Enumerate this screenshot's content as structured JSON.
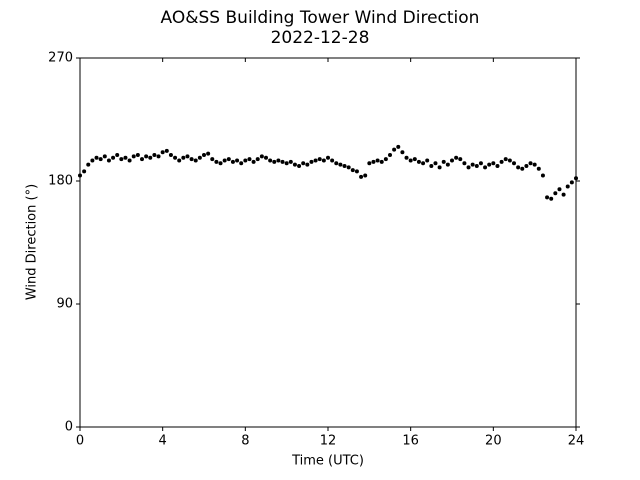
{
  "chart_data": {
    "type": "scatter",
    "title": "AO&SS Building Tower Wind Direction",
    "subtitle": "2022-12-28",
    "x_label": "Time (UTC)",
    "y_label": "Wind Direction (°)",
    "xlim": [
      0,
      24
    ],
    "xticks": [
      0,
      4,
      8,
      12,
      16,
      20,
      24
    ],
    "ylim": [
      0,
      270
    ],
    "yticks": [
      0,
      90,
      180,
      270
    ],
    "color": "#000000",
    "x": [
      0.0,
      0.2,
      0.4,
      0.6,
      0.8,
      1.0,
      1.2,
      1.4,
      1.6,
      1.8,
      2.0,
      2.2,
      2.4,
      2.6,
      2.8,
      3.0,
      3.2,
      3.4,
      3.6,
      3.8,
      4.0,
      4.2,
      4.4,
      4.6,
      4.8,
      5.0,
      5.2,
      5.4,
      5.6,
      5.8,
      6.0,
      6.2,
      6.4,
      6.6,
      6.8,
      7.0,
      7.2,
      7.4,
      7.6,
      7.8,
      8.0,
      8.2,
      8.4,
      8.6,
      8.8,
      9.0,
      9.2,
      9.4,
      9.6,
      9.8,
      10.0,
      10.2,
      10.4,
      10.6,
      10.8,
      11.0,
      11.2,
      11.4,
      11.6,
      11.8,
      12.0,
      12.2,
      12.4,
      12.6,
      12.8,
      13.0,
      13.2,
      13.4,
      13.6,
      13.8,
      14.0,
      14.2,
      14.4,
      14.6,
      14.8,
      15.0,
      15.2,
      15.4,
      15.6,
      15.8,
      16.0,
      16.2,
      16.4,
      16.6,
      16.8,
      17.0,
      17.2,
      17.4,
      17.6,
      17.8,
      18.0,
      18.2,
      18.4,
      18.6,
      18.8,
      19.0,
      19.2,
      19.4,
      19.6,
      19.8,
      20.0,
      20.2,
      20.4,
      20.6,
      20.8,
      21.0,
      21.2,
      21.4,
      21.6,
      21.8,
      22.0,
      22.2,
      22.4,
      22.6,
      22.8,
      23.0,
      23.2,
      23.4,
      23.6,
      23.8,
      24.0
    ],
    "values": [
      184,
      187,
      192,
      195,
      197,
      196,
      198,
      195,
      197,
      199,
      196,
      197,
      195,
      198,
      199,
      196,
      198,
      197,
      199,
      198,
      201,
      202,
      199,
      197,
      195,
      197,
      198,
      196,
      195,
      197,
      199,
      200,
      196,
      194,
      193,
      195,
      196,
      194,
      195,
      193,
      195,
      196,
      194,
      196,
      198,
      197,
      195,
      194,
      195,
      194,
      193,
      194,
      192,
      191,
      193,
      192,
      194,
      195,
      196,
      195,
      197,
      195,
      193,
      192,
      191,
      190,
      188,
      187,
      183,
      184,
      193,
      194,
      195,
      194,
      196,
      199,
      203,
      205,
      201,
      197,
      195,
      196,
      194,
      193,
      195,
      191,
      193,
      190,
      194,
      192,
      195,
      197,
      196,
      193,
      190,
      192,
      191,
      193,
      190,
      192,
      193,
      191,
      194,
      196,
      195,
      193,
      190,
      189,
      191,
      193,
      192,
      189,
      184,
      168,
      167,
      171,
      174,
      170,
      176,
      179,
      182
    ]
  }
}
